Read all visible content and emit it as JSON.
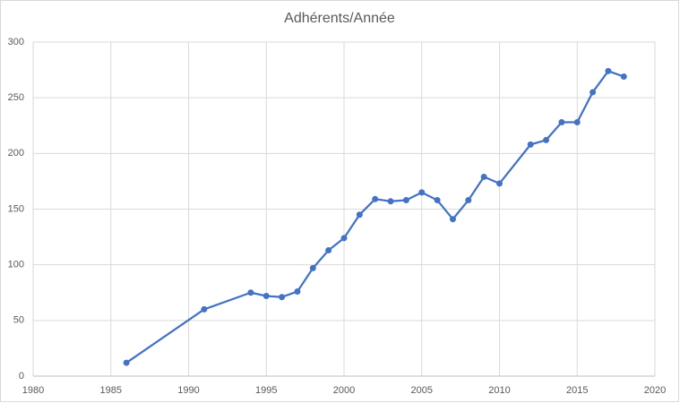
{
  "chart_data": {
    "type": "line",
    "title": "Adhérents/Année",
    "x": [
      1986,
      1991,
      1994,
      1995,
      1996,
      1997,
      1998,
      1999,
      2000,
      2001,
      2002,
      2003,
      2004,
      2005,
      2006,
      2007,
      2008,
      2009,
      2010,
      2012,
      2013,
      2014,
      2015,
      2016,
      2017,
      2018
    ],
    "series": [
      {
        "color": "#4472c4",
        "values": [
          12,
          60,
          75,
          72,
          71,
          76,
          97,
          113,
          124,
          145,
          159,
          157,
          158,
          165,
          158,
          141,
          158,
          179,
          173,
          208,
          212,
          228,
          228,
          255,
          274,
          269
        ]
      }
    ],
    "xlim": [
      1980,
      2020
    ],
    "xticks": [
      1980,
      1985,
      1990,
      1995,
      2000,
      2005,
      2010,
      2015,
      2020
    ],
    "ylim": [
      0,
      300
    ],
    "yticks": [
      0,
      50,
      100,
      150,
      200,
      250,
      300
    ],
    "grid": true
  }
}
